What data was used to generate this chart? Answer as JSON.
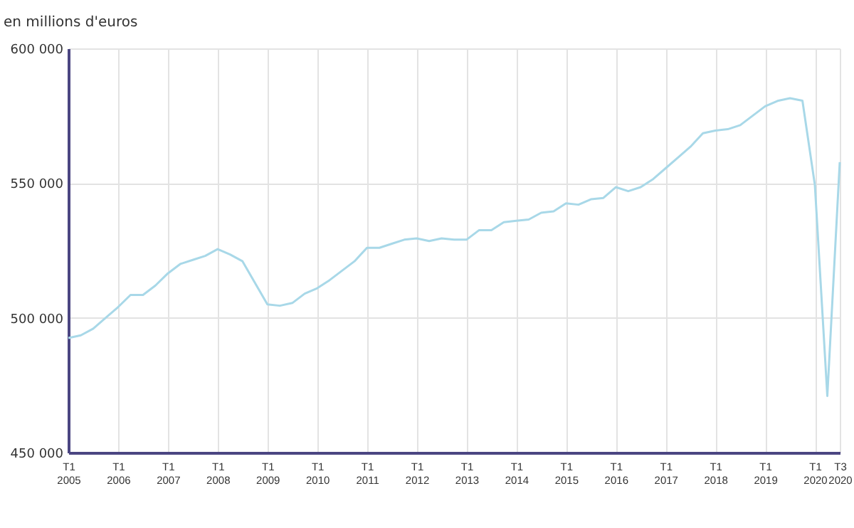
{
  "chart_data": {
    "type": "line",
    "ylabel": "en millions d'euros",
    "categories": [
      "T1 2005",
      null,
      null,
      null,
      "T1 2006",
      null,
      null,
      null,
      "T1 2007",
      null,
      null,
      null,
      "T1 2008",
      null,
      null,
      null,
      "T1 2009",
      null,
      null,
      null,
      "T1 2010",
      null,
      null,
      null,
      "T1 2011",
      null,
      null,
      null,
      "T1 2012",
      null,
      null,
      null,
      "T1 2013",
      null,
      null,
      null,
      "T1 2014",
      null,
      null,
      null,
      "T1 2015",
      null,
      null,
      null,
      "T1 2016",
      null,
      null,
      null,
      "T1 2017",
      null,
      null,
      null,
      "T1 2018",
      null,
      null,
      null,
      "T1 2019",
      null,
      null,
      null,
      "T1 2020",
      null,
      "T3 2020"
    ],
    "series": [
      {
        "color": "#a8d8e8",
        "values": [
          492500,
          493500,
          496000,
          500000,
          504000,
          508500,
          508500,
          512000,
          516500,
          520000,
          521500,
          523000,
          525500,
          523500,
          521000,
          513000,
          505000,
          504500,
          505500,
          509000,
          511000,
          514000,
          517500,
          521000,
          526000,
          526000,
          527500,
          529000,
          529500,
          528500,
          529500,
          529000,
          529000,
          532500,
          532500,
          535500,
          536000,
          536500,
          539000,
          539500,
          542500,
          542000,
          544000,
          544500,
          548500,
          547000,
          548500,
          551500,
          555500,
          559500,
          563500,
          568500,
          569500,
          570000,
          571500,
          575000,
          578500,
          580500,
          581500,
          580600,
          549300,
          471000,
          557800
        ]
      }
    ],
    "ylim": [
      450000,
      600000
    ],
    "yticks": [
      {
        "value": 450000,
        "label": "450 000"
      },
      {
        "value": 500000,
        "label": "500 000"
      },
      {
        "value": 550000,
        "label": "550 000"
      },
      {
        "value": 600000,
        "label": "600 000"
      }
    ],
    "grid": true,
    "legend": false,
    "marker": "none",
    "line_style": "solid"
  }
}
